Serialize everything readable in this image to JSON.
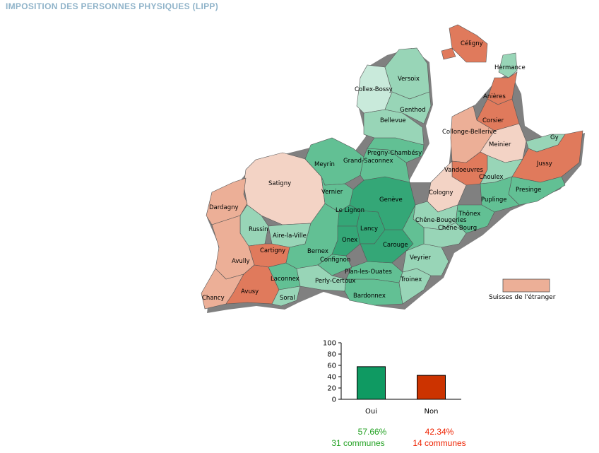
{
  "title": "IMPOSITION DES PERSONNES PHYSIQUES (LIPP)",
  "colors": {
    "oui_strong": "#34a777",
    "oui_medium": "#62c094",
    "oui_light": "#98d5b7",
    "oui_pale": "#c9eadb",
    "non_strong": "#e07a5c",
    "non_light": "#ecaf97",
    "non_pale": "#f3d3c5",
    "bar_oui": "#0f9a62",
    "bar_non": "#cc3300",
    "text_oui": "#22a122",
    "text_non": "#ee2200"
  },
  "communes": [
    {
      "name": "Céligny",
      "result": "non_strong"
    },
    {
      "name": "Hermance",
      "result": "oui_light"
    },
    {
      "name": "Versoix",
      "result": "oui_light"
    },
    {
      "name": "Collex-Bossy",
      "result": "oui_pale"
    },
    {
      "name": "Anières",
      "result": "non_strong"
    },
    {
      "name": "Genthod",
      "result": "oui_light"
    },
    {
      "name": "Bellevue",
      "result": "oui_light"
    },
    {
      "name": "Corsier",
      "result": "non_strong"
    },
    {
      "name": "Collonge-Bellerive",
      "result": "non_light"
    },
    {
      "name": "Meinier",
      "result": "non_pale"
    },
    {
      "name": "Gy",
      "result": "oui_light"
    },
    {
      "name": "Pregny-Chambésy",
      "result": "oui_medium"
    },
    {
      "name": "Grand-Saconnex",
      "result": "oui_medium"
    },
    {
      "name": "Jussy",
      "result": "non_strong"
    },
    {
      "name": "Meyrin",
      "result": "oui_medium"
    },
    {
      "name": "Vandoeuvres",
      "result": "non_strong"
    },
    {
      "name": "Choulex",
      "result": "oui_light"
    },
    {
      "name": "Satigny",
      "result": "non_pale"
    },
    {
      "name": "Vernier",
      "result": "oui_medium"
    },
    {
      "name": "Genève",
      "result": "oui_strong"
    },
    {
      "name": "Cologny",
      "result": "non_pale"
    },
    {
      "name": "Presinge",
      "result": "oui_medium"
    },
    {
      "name": "Puplinge",
      "result": "oui_medium"
    },
    {
      "name": "Dardagny",
      "result": "non_light"
    },
    {
      "name": "Le Lignon",
      "result": "oui_strong"
    },
    {
      "name": "Thônex",
      "result": "oui_medium"
    },
    {
      "name": "Chêne-Bougeries",
      "result": "oui_light"
    },
    {
      "name": "Chêne-Bourg",
      "result": "oui_light"
    },
    {
      "name": "Russin",
      "result": "oui_light"
    },
    {
      "name": "Aire-la-Ville",
      "result": "oui_light"
    },
    {
      "name": "Lancy",
      "result": "oui_strong"
    },
    {
      "name": "Onex",
      "result": "oui_strong"
    },
    {
      "name": "Carouge",
      "result": "oui_strong"
    },
    {
      "name": "Cartigny",
      "result": "non_strong"
    },
    {
      "name": "Bernex",
      "result": "oui_medium"
    },
    {
      "name": "Confignon",
      "result": "oui_medium"
    },
    {
      "name": "Veyrier",
      "result": "oui_light"
    },
    {
      "name": "Avully",
      "result": "non_light"
    },
    {
      "name": "Plan-les-Ouates",
      "result": "oui_medium"
    },
    {
      "name": "Laconnex",
      "result": "oui_medium"
    },
    {
      "name": "Perly-Certoux",
      "result": "oui_light"
    },
    {
      "name": "Troinex",
      "result": "oui_light"
    },
    {
      "name": "Avusy",
      "result": "non_strong"
    },
    {
      "name": "Chancy",
      "result": "non_light"
    },
    {
      "name": "Soral",
      "result": "oui_light"
    },
    {
      "name": "Bardonnex",
      "result": "oui_medium"
    }
  ],
  "legend": {
    "suisses_etranger": "Suisses de l'étranger",
    "color_key": "non_light"
  },
  "chart_data": {
    "type": "bar",
    "categories": [
      "Oui",
      "Non"
    ],
    "values": [
      57.66,
      42.34
    ],
    "ylim": [
      0,
      100
    ],
    "yticks": [
      "0",
      "20",
      "40",
      "60",
      "80",
      "100"
    ],
    "colors": [
      "#0f9a62",
      "#cc3300"
    ]
  },
  "results": {
    "oui_pct": "57.66%",
    "oui_communes": "31 communes",
    "non_pct": "42.34%",
    "non_communes": "14 communes"
  }
}
